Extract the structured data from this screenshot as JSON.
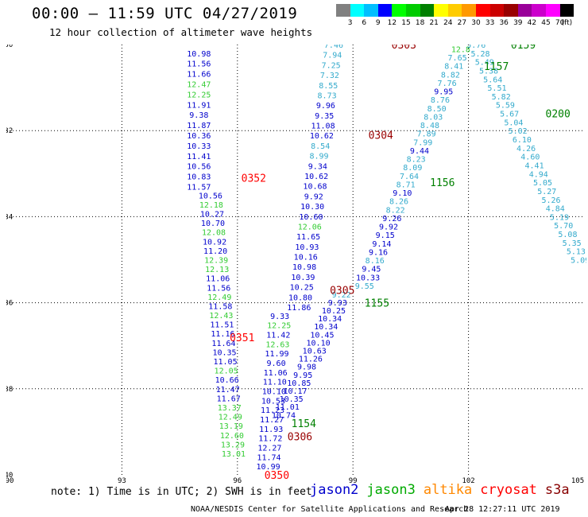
{
  "header": {
    "title": "00:00 – 11:59 UTC 04/27/2019",
    "subtitle": "12 hour collection of altimeter wave heights"
  },
  "colorbar": {
    "colors": [
      "#808080",
      "#00ffff",
      "#00bfff",
      "#0000ff",
      "#00ff00",
      "#00cc00",
      "#008000",
      "#ffff00",
      "#ffcc00",
      "#ff9900",
      "#ff0000",
      "#cc0000",
      "#990000",
      "#990099",
      "#cc00cc",
      "#ff00ff",
      "#000000"
    ],
    "labels": [
      "3",
      "6",
      "9",
      "12",
      "15",
      "18",
      "21",
      "24",
      "27",
      "30",
      "33",
      "36",
      "39",
      "42",
      "45",
      "70",
      "(ft)"
    ]
  },
  "chart_data": {
    "type": "scatter",
    "title": "00:00 – 11:59 UTC 04/27/2019",
    "subtitle": "12 hour collection of altimeter wave heights",
    "xlim": [
      90,
      105
    ],
    "ylim": [
      -40,
      -30
    ],
    "x_ticks": [
      90,
      93,
      96,
      99,
      102,
      105
    ],
    "y_ticks": [
      -30,
      -32,
      -34,
      -36,
      -38,
      -40
    ],
    "grid": true,
    "series_colors": {
      "jason2": "#0000cc",
      "jason3": "#00aa00",
      "altika": "#ff8800",
      "cryosat": "#ff0000",
      "s3a": "#880000"
    },
    "pass_times": [
      {
        "label": "0303",
        "lon": 100.0,
        "lat": -30.0,
        "color": "#990000"
      },
      {
        "label": "0159",
        "lon": 103.1,
        "lat": -30.0,
        "color": "#008000"
      },
      {
        "label": "1157",
        "lon": 102.4,
        "lat": -30.5,
        "color": "#008000"
      },
      {
        "label": "0200",
        "lon": 104.0,
        "lat": -31.6,
        "color": "#008000"
      },
      {
        "label": "0304",
        "lon": 99.4,
        "lat": -32.1,
        "color": "#990000"
      },
      {
        "label": "0352",
        "lon": 96.1,
        "lat": -33.1,
        "color": "#ff0000"
      },
      {
        "label": "1156",
        "lon": 101.0,
        "lat": -33.2,
        "color": "#008000"
      },
      {
        "label": "0305",
        "lon": 98.4,
        "lat": -35.7,
        "color": "#990000"
      },
      {
        "label": "1155",
        "lon": 99.3,
        "lat": -36.0,
        "color": "#008000"
      },
      {
        "label": "0351",
        "lon": 95.8,
        "lat": -36.8,
        "color": "#ff0000"
      },
      {
        "label": "1154",
        "lon": 97.4,
        "lat": -38.8,
        "color": "#008000"
      },
      {
        "label": "0306",
        "lon": 97.3,
        "lat": -39.1,
        "color": "#990000"
      },
      {
        "label": "0350",
        "lon": 96.7,
        "lat": -40.0,
        "color": "#ff0000"
      }
    ],
    "tracks": [
      {
        "name": "cryosat-col",
        "color": "#0000cc",
        "lon_start": 95.0,
        "lat_start": -30.2,
        "lon_end": 95.0,
        "lat_end": -33.3,
        "values": [
          "10.98",
          "11.56",
          "11.66",
          "12.47",
          "12.25",
          "11.91",
          "9.38",
          "11.87",
          "10.36",
          "10.33",
          "11.41",
          "10.56",
          "10.83",
          "11.57"
        ],
        "alt": {
          "3": "#33cc33",
          "4": "#33cc33"
        }
      },
      {
        "name": "cryosat-col2",
        "color": "#0000cc",
        "lon_start": 95.3,
        "lat_start": -33.5,
        "lon_end": 95.9,
        "lat_end": -39.5,
        "values": [
          "10.56",
          "12.18",
          "10.27",
          "10.70",
          "12.08",
          "10.92",
          "11.20",
          "12.39",
          "12.13",
          "11.06",
          "11.56",
          "12.49",
          "11.58",
          "12.43",
          "11.51",
          "11.16",
          "11.64",
          "10.35",
          "11.05",
          "12.05",
          "10.66",
          "11.47",
          "11.67",
          "13.37",
          "12.49",
          "13.19",
          "12.60",
          "13.29",
          "13.01"
        ],
        "alt": {
          "1": "#33cc33",
          "4": "#33cc33",
          "7": "#33cc33",
          "8": "#33cc33",
          "11": "#33cc33",
          "13": "#33cc33",
          "19": "#33cc33",
          "23": "#33cc33",
          "24": "#33cc33",
          "25": "#33cc33",
          "26": "#33cc33",
          "27": "#33cc33",
          "28": "#33cc33"
        }
      },
      {
        "name": "jason2-a",
        "color": "#0000cc",
        "lon_start": 98.5,
        "lat_start": -30.0,
        "lon_end": 97.6,
        "lat_end": -36.1,
        "values": [
          "7.46",
          "7.94",
          "7.25",
          "7.32",
          "8.55",
          "8.73",
          "9.96",
          "9.35",
          "11.08",
          "10.62",
          "8.54",
          "8.99",
          "9.34",
          "10.62",
          "10.68",
          "9.92",
          "10.30",
          "10.60",
          "12.06",
          "11.65",
          "10.93",
          "10.16",
          "10.98",
          "10.39",
          "10.25",
          "10.80",
          "11.86"
        ],
        "alt": {
          "0": "#33aacc",
          "1": "#33aacc",
          "2": "#33aacc",
          "3": "#33aacc",
          "4": "#33aacc",
          "5": "#33aacc",
          "10": "#33aacc",
          "11": "#33aacc",
          "18": "#33cc33"
        }
      },
      {
        "name": "jason2-b",
        "color": "#0000cc",
        "lon_start": 97.1,
        "lat_start": -36.3,
        "lon_end": 96.8,
        "lat_end": -39.8,
        "values": [
          "9.33",
          "12.25",
          "11.42",
          "12.63",
          "11.99",
          "9.60",
          "11.06",
          "11.10",
          "10.10",
          "10.53",
          "11.23",
          "11.27",
          "11.93",
          "11.72",
          "12.27",
          "11.74",
          "10.99"
        ],
        "alt": {
          "1": "#33cc33",
          "3": "#33cc33"
        }
      },
      {
        "name": "jason2-c",
        "color": "#0000cc",
        "lon_start": 98.7,
        "lat_start": -35.8,
        "lon_end": 97.2,
        "lat_end": -38.6,
        "values": [
          "9.22",
          "9.93",
          "10.25",
          "10.34",
          "10.34",
          "10.45",
          "10.10",
          "10.63",
          "11.26",
          "9.98",
          "9.95",
          "10.85",
          "10.17",
          "10.35",
          "11.01",
          "10.74"
        ],
        "alt": {
          "0": "#33aacc"
        }
      },
      {
        "name": "s3a-a",
        "color": "#33aacc",
        "lon_start": 101.8,
        "lat_start": -30.1,
        "lon_end": 99.3,
        "lat_end": -35.6,
        "values": [
          "12.8",
          "7.65",
          "8.41",
          "8.82",
          "7.76",
          "9.95",
          "8.76",
          "8.50",
          "8.03",
          "8.48",
          "7.89",
          "7.99",
          "9.44",
          "8.23",
          "8.09",
          "7.64",
          "8.71",
          "9.10",
          "8.26",
          "8.22",
          "9.26",
          "9.92",
          "9.15",
          "9.14",
          "9.16",
          "8.16",
          "9.45",
          "10.33",
          "9.55"
        ],
        "alt": {
          "0": "#33cc33",
          "5": "#0000cc",
          "12": "#0000cc",
          "17": "#0000cc",
          "20": "#0000cc",
          "21": "#0000cc",
          "22": "#0000cc",
          "23": "#0000cc",
          "24": "#0000cc",
          "26": "#0000cc",
          "27": "#0000cc"
        }
      },
      {
        "name": "s3a-b",
        "color": "#33aacc",
        "lon_start": 102.2,
        "lat_start": -30.0,
        "lon_end": 104.9,
        "lat_end": -35.0,
        "values": [
          "5.76",
          "5.28",
          "5.49",
          "5.38",
          "5.64",
          "5.51",
          "5.82",
          "5.59",
          "5.67",
          "5.04",
          "5.02",
          "6.10",
          "4.26",
          "4.60",
          "4.41",
          "4.94",
          "5.05",
          "5.27",
          "5.26",
          "4.84",
          "5.19",
          "5.70",
          "5.08",
          "5.35",
          "5.13",
          "5.09"
        ]
      }
    ]
  },
  "note": "note: 1) Time is in UTC; 2) SWH is in feet",
  "legend": {
    "jason2": {
      "label": "jason2",
      "color": "#0000cc"
    },
    "jason3": {
      "label": "jason3",
      "color": "#00aa00"
    },
    "altika": {
      "label": "altika",
      "color": "#ff8800"
    },
    "cryosat": {
      "label": "cryosat",
      "color": "#ff0000"
    },
    "s3a": {
      "label": "s3a",
      "color": "#880000"
    }
  },
  "footer": {
    "left": "NOAA/NESDIS Center for Satellite Applications and Research",
    "right": "Apr 28 12:27:11 UTC 2019"
  }
}
